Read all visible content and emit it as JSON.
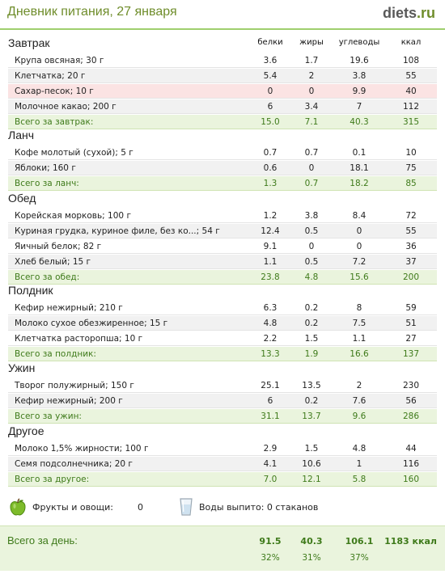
{
  "header": {
    "title": "Дневник питания, 27 января",
    "logo_main": "diets",
    "logo_suffix": ".ru"
  },
  "columns": {
    "protein": "белки",
    "fat": "жиры",
    "carbs": "углеводы",
    "kcal": "ккал"
  },
  "meals": [
    {
      "title": "Завтрак",
      "rows": [
        {
          "name": "Крупа овсяная; 30 г",
          "protein": "3.6",
          "fat": "1.7",
          "carbs": "19.6",
          "kcal": "108",
          "highlight": false
        },
        {
          "name": "Клетчатка; 20 г",
          "protein": "5.4",
          "fat": "2",
          "carbs": "3.8",
          "kcal": "55",
          "highlight": false
        },
        {
          "name": "Сахар-песок; 10 г",
          "protein": "0",
          "fat": "0",
          "carbs": "9.9",
          "kcal": "40",
          "highlight": true
        },
        {
          "name": "Молочное какао; 200 г",
          "protein": "6",
          "fat": "3.4",
          "carbs": "7",
          "kcal": "112",
          "highlight": false
        }
      ],
      "total": {
        "label": "Всего за завтрак:",
        "protein": "15.0",
        "fat": "7.1",
        "carbs": "40.3",
        "kcal": "315"
      }
    },
    {
      "title": "Ланч",
      "rows": [
        {
          "name": "Кофе молотый (сухой); 5 г",
          "protein": "0.7",
          "fat": "0.7",
          "carbs": "0.1",
          "kcal": "10",
          "highlight": false
        },
        {
          "name": "Яблоки; 160 г",
          "protein": "0.6",
          "fat": "0",
          "carbs": "18.1",
          "kcal": "75",
          "highlight": false
        }
      ],
      "total": {
        "label": "Всего за ланч:",
        "protein": "1.3",
        "fat": "0.7",
        "carbs": "18.2",
        "kcal": "85"
      }
    },
    {
      "title": "Обед",
      "rows": [
        {
          "name": "Корейская морковь; 100 г",
          "protein": "1.2",
          "fat": "3.8",
          "carbs": "8.4",
          "kcal": "72",
          "highlight": false
        },
        {
          "name": "Куриная грудка, куриное филе, без ко...; 54 г",
          "protein": "12.4",
          "fat": "0.5",
          "carbs": "0",
          "kcal": "55",
          "highlight": false
        },
        {
          "name": "Яичный белок; 82 г",
          "protein": "9.1",
          "fat": "0",
          "carbs": "0",
          "kcal": "36",
          "highlight": false
        },
        {
          "name": "Хлеб белый; 15 г",
          "protein": "1.1",
          "fat": "0.5",
          "carbs": "7.2",
          "kcal": "37",
          "highlight": false
        }
      ],
      "total": {
        "label": "Всего за обед:",
        "protein": "23.8",
        "fat": "4.8",
        "carbs": "15.6",
        "kcal": "200"
      }
    },
    {
      "title": "Полдник",
      "rows": [
        {
          "name": "Кефир нежирный; 210 г",
          "protein": "6.3",
          "fat": "0.2",
          "carbs": "8",
          "kcal": "59",
          "highlight": false
        },
        {
          "name": "Молоко сухое обезжиренное; 15 г",
          "protein": "4.8",
          "fat": "0.2",
          "carbs": "7.5",
          "kcal": "51",
          "highlight": false
        },
        {
          "name": "Клетчатка расторопша; 10 г",
          "protein": "2.2",
          "fat": "1.5",
          "carbs": "1.1",
          "kcal": "27",
          "highlight": false
        }
      ],
      "total": {
        "label": "Всего за полдник:",
        "protein": "13.3",
        "fat": "1.9",
        "carbs": "16.6",
        "kcal": "137"
      }
    },
    {
      "title": "Ужин",
      "rows": [
        {
          "name": "Творог полужирный; 150 г",
          "protein": "25.1",
          "fat": "13.5",
          "carbs": "2",
          "kcal": "230",
          "highlight": false
        },
        {
          "name": "Кефир нежирный; 200 г",
          "protein": "6",
          "fat": "0.2",
          "carbs": "7.6",
          "kcal": "56",
          "highlight": false
        }
      ],
      "total": {
        "label": "Всего за ужин:",
        "protein": "31.1",
        "fat": "13.7",
        "carbs": "9.6",
        "kcal": "286"
      }
    },
    {
      "title": "Другое",
      "rows": [
        {
          "name": "Молоко 1,5% жирности; 100 г",
          "protein": "2.9",
          "fat": "1.5",
          "carbs": "4.8",
          "kcal": "44",
          "highlight": false
        },
        {
          "name": "Семя подсолнечника; 20 г",
          "protein": "4.1",
          "fat": "10.6",
          "carbs": "1",
          "kcal": "116",
          "highlight": false
        }
      ],
      "total": {
        "label": "Всего за другое:",
        "protein": "7.0",
        "fat": "12.1",
        "carbs": "5.8",
        "kcal": "160"
      }
    }
  ],
  "extras": {
    "fruits_label": "Фрукты и овощи:",
    "fruits_value": "0",
    "water_label": "Воды выпито: 0 стаканов",
    "apple_icon": "apple-icon",
    "glass_icon": "water-glass-icon"
  },
  "day_total": {
    "label": "Всего за день:",
    "protein": "91.5",
    "fat": "40.3",
    "carbs": "106.1",
    "kcal": "1183 ккал",
    "protein_pct": "32%",
    "fat_pct": "31%",
    "carbs_pct": "37%"
  },
  "colors": {
    "accent": "#6f8d2b",
    "total_text": "#3e7a1a",
    "total_bg": "#eaf4dd",
    "highlight_bg": "#fbe3e3"
  }
}
